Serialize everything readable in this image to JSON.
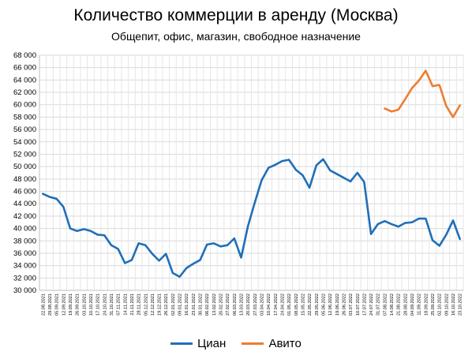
{
  "chart_data": {
    "type": "line",
    "title": "Количество коммерции в аренду (Москва)",
    "subtitle": "Общепит, офис, магазин, свободное назначение",
    "xlabel": "",
    "ylabel": "",
    "ylim": [
      30000,
      68000
    ],
    "yticks": [
      30000,
      32000,
      34000,
      36000,
      38000,
      40000,
      42000,
      44000,
      46000,
      48000,
      50000,
      52000,
      54000,
      56000,
      58000,
      60000,
      62000,
      64000,
      66000,
      68000
    ],
    "ytick_labels": [
      "30 000",
      "32 000",
      "34 000",
      "36 000",
      "38 000",
      "40 000",
      "42 000",
      "44 000",
      "46 000",
      "48 000",
      "50 000",
      "52 000",
      "54 000",
      "56 000",
      "58 000",
      "60 000",
      "62 000",
      "64 000",
      "66 000",
      "68 000"
    ],
    "grid": true,
    "legend_position": "bottom",
    "x_tick_labels": [
      "22.08.2021",
      "29.08.2021",
      "05.09.2021",
      "12.09.2021",
      "19.09.2021",
      "26.09.2021",
      "03.10.2021",
      "10.10.2021",
      "17.10.2021",
      "24.10.2021",
      "31.10.2021",
      "07.11.2021",
      "14.11.2021",
      "21.11.2021",
      "28.11.2021",
      "05.12.2021",
      "12.12.2021",
      "19.12.2021",
      "26.12.2021",
      "02.01.2022",
      "09.01.2022",
      "16.01.2022",
      "23.01.2022",
      "30.01.2022",
      "06.02.2022",
      "13.02.2022",
      "20.02.2022",
      "27.02.2022",
      "06.03.2022",
      "13.03.2022",
      "20.03.2022",
      "27.03.2022",
      "03.04.2022",
      "10.04.2022",
      "17.04.2022",
      "24.04.2022",
      "01.05.2022",
      "08.05.2022",
      "15.05.2022",
      "22.05.2022",
      "29.05.2022",
      "05.06.2022",
      "12.06.2022",
      "19.06.2022",
      "26.06.2022",
      "03.07.2022",
      "10.07.2022",
      "17.07.2022",
      "24.07.2022",
      "31.07.2022",
      "07.08.2022",
      "14.08.2022",
      "21.08.2022",
      "28.08.2022",
      "04.09.2022",
      "11.09.2022",
      "18.09.2022",
      "25.09.2022",
      "02.10.2022",
      "09.10.2022",
      "16.10.2022",
      "23.10.2022"
    ],
    "x_tick_shown": [
      "22.08.2021",
      "29.08.2021",
      "05.09.2021",
      "12.09.2021",
      "19.09.2021",
      "26.09.2021",
      "03.10.2021",
      "10.10.2021",
      "17.10.2021",
      "24.10.2021",
      "31.10.2021",
      "07.11.2021",
      "14.11.2021",
      "21.11.2021",
      "28.11.2021",
      "05.12.2021",
      "12.12.2021",
      "19.12.2021",
      "26.12.2021",
      "02.01.2022",
      "09.01.2022",
      "16.01.2022",
      "23.01.2022",
      "30.01.2022",
      "06.02.2022",
      "13.02.2022",
      "20.02.2022",
      "27.02.2022",
      "06.03.2022",
      "13.03.2022",
      "20.03.2022",
      "27.03.2022",
      "03.04.2022",
      "10.04.2022",
      "17.04.2022",
      "24.04.2022",
      "01.05.2022",
      "08.05.2022",
      "15.05.2022",
      "22.05.2022",
      "29.05.2022",
      "05.06.2022",
      "12.06.2022",
      "19.06.2022",
      "26.06.2022",
      "03.07.2022",
      "10.07.2022",
      "17.07.2022",
      "24.07.2022",
      "31.07.2022",
      "07.08.2022",
      "14.08.2022",
      "21.08.2022",
      "28.08.2022",
      "04.09.2022",
      "11.09.2022",
      "18.09.2022",
      "25.09.2022",
      "02.10.2022",
      "09.10.2022",
      "16.10.2022",
      "23.10.2022"
    ],
    "series": [
      {
        "name": "Циан",
        "color": "#1f6fb8",
        "values": [
          45600,
          45100,
          44800,
          43500,
          40000,
          39600,
          39900,
          39600,
          39000,
          38900,
          37300,
          36700,
          34400,
          34900,
          37600,
          37300,
          35900,
          34800,
          35900,
          32800,
          32200,
          33600,
          34300,
          34900,
          37400,
          37600,
          37100,
          37300,
          38400,
          35300,
          40400,
          44200,
          47800,
          49800,
          50300,
          50900,
          51100,
          49500,
          48600,
          46600,
          50200,
          51200,
          49400,
          48800,
          48200,
          47600,
          49000,
          47500,
          39100,
          40700,
          41200,
          40700,
          40300,
          40900,
          41000,
          41600,
          41600,
          38100,
          37200,
          39000,
          41300,
          38300
        ]
      },
      {
        "name": "Авито",
        "color": "#ed7d31",
        "values": [
          null,
          null,
          null,
          null,
          null,
          null,
          null,
          null,
          null,
          null,
          null,
          null,
          null,
          null,
          null,
          null,
          null,
          null,
          null,
          null,
          null,
          null,
          null,
          null,
          null,
          null,
          null,
          null,
          null,
          null,
          null,
          null,
          null,
          null,
          null,
          null,
          null,
          null,
          null,
          null,
          null,
          null,
          null,
          null,
          null,
          null,
          null,
          null,
          null,
          null,
          59400,
          58900,
          59200,
          60900,
          62700,
          63900,
          65500,
          63000,
          63200,
          59800,
          58000,
          59900
        ]
      }
    ]
  }
}
